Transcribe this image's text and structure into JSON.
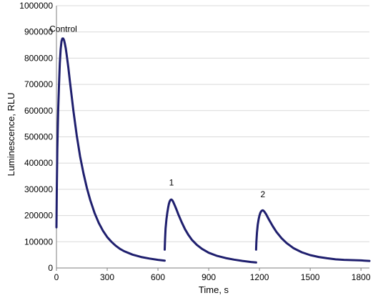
{
  "chart_data": {
    "type": "line",
    "xlabel": "Time, s",
    "ylabel": "Luminescence, RLU",
    "xlim": [
      0,
      1850
    ],
    "ylim": [
      0,
      1000000
    ],
    "x_ticks": [
      0,
      300,
      600,
      900,
      1200,
      1500,
      1800
    ],
    "y_ticks": [
      0,
      100000,
      200000,
      300000,
      400000,
      500000,
      600000,
      700000,
      800000,
      900000,
      1000000
    ],
    "grid": "horizontal",
    "line_color": "#1f1f6e",
    "annotations": [
      {
        "text": "Control",
        "x": 40,
        "y": 900000
      },
      {
        "text": "1",
        "x": 680,
        "y": 315000
      },
      {
        "text": "2",
        "x": 1220,
        "y": 270000
      }
    ],
    "series": [
      {
        "segments": [
          {
            "x": [
              0,
              2,
              5,
              10,
              15,
              20,
              25,
              30,
              35,
              40,
              45,
              50,
              55,
              60,
              70,
              80,
              90,
              100,
              120,
              140,
              160,
              180,
              200,
              225,
              250,
              275,
              300,
              325,
              350,
              375,
              400,
              450,
              500,
              550,
              600,
              640
            ],
            "y": [
              155000,
              300000,
              450000,
              600000,
              700000,
              780000,
              835000,
              865000,
              875000,
              875000,
              868000,
              855000,
              838000,
              815000,
              765000,
              710000,
              655000,
              600000,
              505000,
              425000,
              360000,
              305000,
              258000,
              210000,
              172000,
              142000,
              118000,
              100000,
              85000,
              73000,
              64000,
              51000,
              42000,
              36000,
              31000,
              28000
            ]
          },
          {
            "x": [
              640,
              642,
              645,
              650,
              655,
              660,
              665,
              670,
              675,
              680,
              685,
              690,
              700,
              710,
              720,
              740,
              760,
              780,
              800,
              830,
              860,
              900,
              950,
              1000,
              1050,
              1100,
              1150,
              1180
            ],
            "y": [
              70000,
              110000,
              150000,
              185000,
              210000,
              230000,
              245000,
              255000,
              260000,
              261000,
              258000,
              252000,
              238000,
              222000,
              205000,
              175000,
              148000,
              126000,
              108000,
              88000,
              73000,
              58000,
              46000,
              38000,
              32000,
              27000,
              23000,
              21000
            ]
          },
          {
            "x": [
              1180,
              1182,
              1185,
              1190,
              1195,
              1200,
              1205,
              1210,
              1215,
              1220,
              1225,
              1230,
              1240,
              1250,
              1260,
              1280,
              1300,
              1330,
              1360,
              1400,
              1450,
              1500,
              1550,
              1600,
              1650,
              1700,
              1750,
              1800,
              1850
            ],
            "y": [
              70000,
              100000,
              135000,
              165000,
              185000,
              200000,
              210000,
              216000,
              219000,
              220000,
              218000,
              214000,
              204000,
              192000,
              180000,
              158000,
              138000,
              114000,
              95000,
              76000,
              60000,
              49000,
              42000,
              37000,
              33000,
              31000,
              30000,
              29000,
              27000
            ]
          }
        ]
      }
    ]
  }
}
